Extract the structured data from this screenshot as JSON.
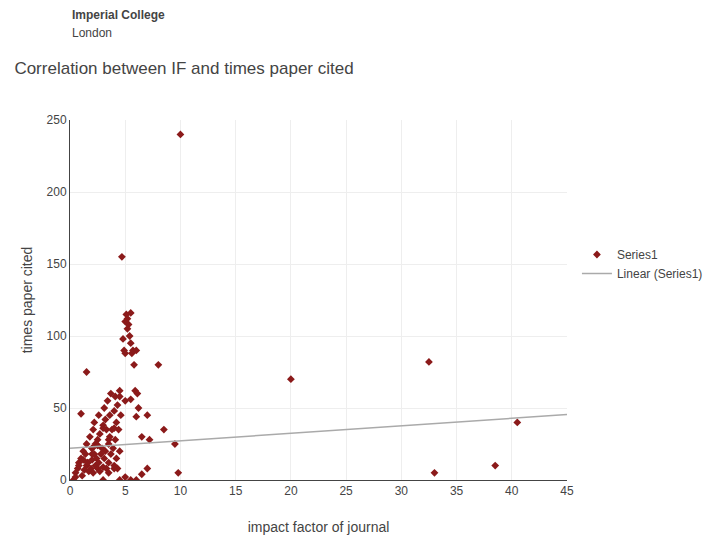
{
  "chart_data": {
    "type": "scatter",
    "title": "Correlation between IF and times paper cited",
    "annotations": [
      "Imperial College",
      "London"
    ],
    "xlabel": "impact factor of journal",
    "ylabel": "times paper cited",
    "series": [
      {
        "name": "Series1",
        "type": "scatter",
        "color": "#8B1A1A",
        "marker": "diamond",
        "x": [
          0.5,
          0.7,
          0.8,
          1.0,
          1.1,
          1.2,
          1.3,
          1.4,
          1.5,
          1.5,
          1.6,
          1.7,
          1.8,
          1.9,
          2.0,
          2.0,
          2.1,
          2.1,
          2.2,
          2.2,
          2.3,
          2.3,
          2.4,
          2.5,
          2.5,
          2.6,
          2.6,
          2.7,
          2.7,
          2.8,
          2.9,
          3.0,
          3.0,
          3.1,
          3.1,
          3.2,
          3.2,
          3.3,
          3.3,
          3.4,
          3.5,
          3.5,
          3.6,
          3.6,
          3.7,
          3.7,
          3.8,
          3.9,
          4.0,
          4.0,
          4.1,
          4.1,
          4.2,
          4.2,
          4.3,
          4.3,
          4.4,
          4.5,
          4.5,
          4.6,
          4.7,
          4.8,
          4.9,
          5.0,
          5.0,
          5.1,
          5.2,
          5.2,
          5.3,
          5.4,
          5.5,
          5.5,
          5.6,
          5.7,
          5.8,
          5.9,
          6.0,
          6.1,
          6.2,
          6.5,
          7.0,
          7.2,
          8.0,
          8.5,
          9.5,
          9.8,
          10.0,
          20.0,
          32.5,
          33.0,
          38.5,
          40.5,
          1.0,
          1.5,
          2.0,
          2.5,
          3.0,
          3.5,
          4.0,
          4.5,
          5.0,
          5.5,
          6.0,
          0.3,
          0.5,
          0.8,
          1.2,
          1.6,
          2.0,
          2.5,
          3.0,
          3.5,
          4.0,
          4.5,
          5.0,
          5.5,
          6.0,
          6.5,
          7.0
        ],
        "values": [
          5,
          8,
          12,
          15,
          3,
          20,
          7,
          18,
          10,
          25,
          12,
          6,
          30,
          8,
          22,
          14,
          35,
          5,
          18,
          40,
          25,
          10,
          15,
          28,
          8,
          45,
          12,
          32,
          6,
          18,
          22,
          38,
          9,
          50,
          15,
          42,
          20,
          8,
          35,
          55,
          25,
          12,
          45,
          30,
          18,
          60,
          35,
          22,
          48,
          10,
          58,
          28,
          40,
          15,
          52,
          8,
          35,
          62,
          20,
          45,
          155,
          98,
          90,
          88,
          110,
          115,
          112,
          105,
          108,
          100,
          116,
          95,
          88,
          90,
          80,
          62,
          90,
          60,
          50,
          30,
          45,
          28,
          80,
          35,
          25,
          5,
          240,
          70,
          82,
          5,
          10,
          40,
          46,
          75,
          22,
          24,
          36,
          28,
          36,
          58,
          55,
          56,
          44,
          0,
          2,
          10,
          14,
          12,
          18,
          24,
          0,
          5,
          8,
          0,
          2,
          0,
          0,
          4,
          8
        ]
      },
      {
        "name": "Linear (Series1)",
        "type": "line",
        "color": "#aaaaaa",
        "x": [
          0,
          45
        ],
        "values": [
          22,
          45.4
        ]
      }
    ],
    "xlim": [
      0,
      45
    ],
    "xticks": [
      0,
      5,
      10,
      15,
      20,
      25,
      30,
      35,
      40,
      45
    ],
    "ylim": [
      0,
      250
    ],
    "yticks": [
      0,
      50,
      100,
      150,
      200,
      250
    ],
    "grid": true,
    "legend": "right"
  }
}
